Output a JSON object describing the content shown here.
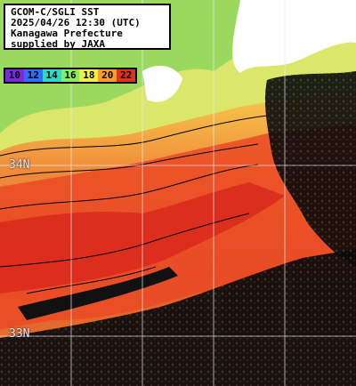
{
  "info": {
    "line1": "GCOM-C/SGLI SST",
    "line2": "2025/04/26 12:30 (UTC)",
    "line3": "Kanagawa Prefecture",
    "line4": "supplied by JAXA"
  },
  "legend": [
    {
      "value": "10",
      "color": "#7a2cd6"
    },
    {
      "value": "12",
      "color": "#2f6dff"
    },
    {
      "value": "14",
      "color": "#2fd9c6"
    },
    {
      "value": "16",
      "color": "#86ef5e"
    },
    {
      "value": "18",
      "color": "#f2ef4b"
    },
    {
      "value": "20",
      "color": "#ff9b2c"
    },
    {
      "value": "22",
      "color": "#e0301e"
    }
  ],
  "grid_labels": {
    "lat_34": "34N",
    "lat_33": "33N"
  }
}
